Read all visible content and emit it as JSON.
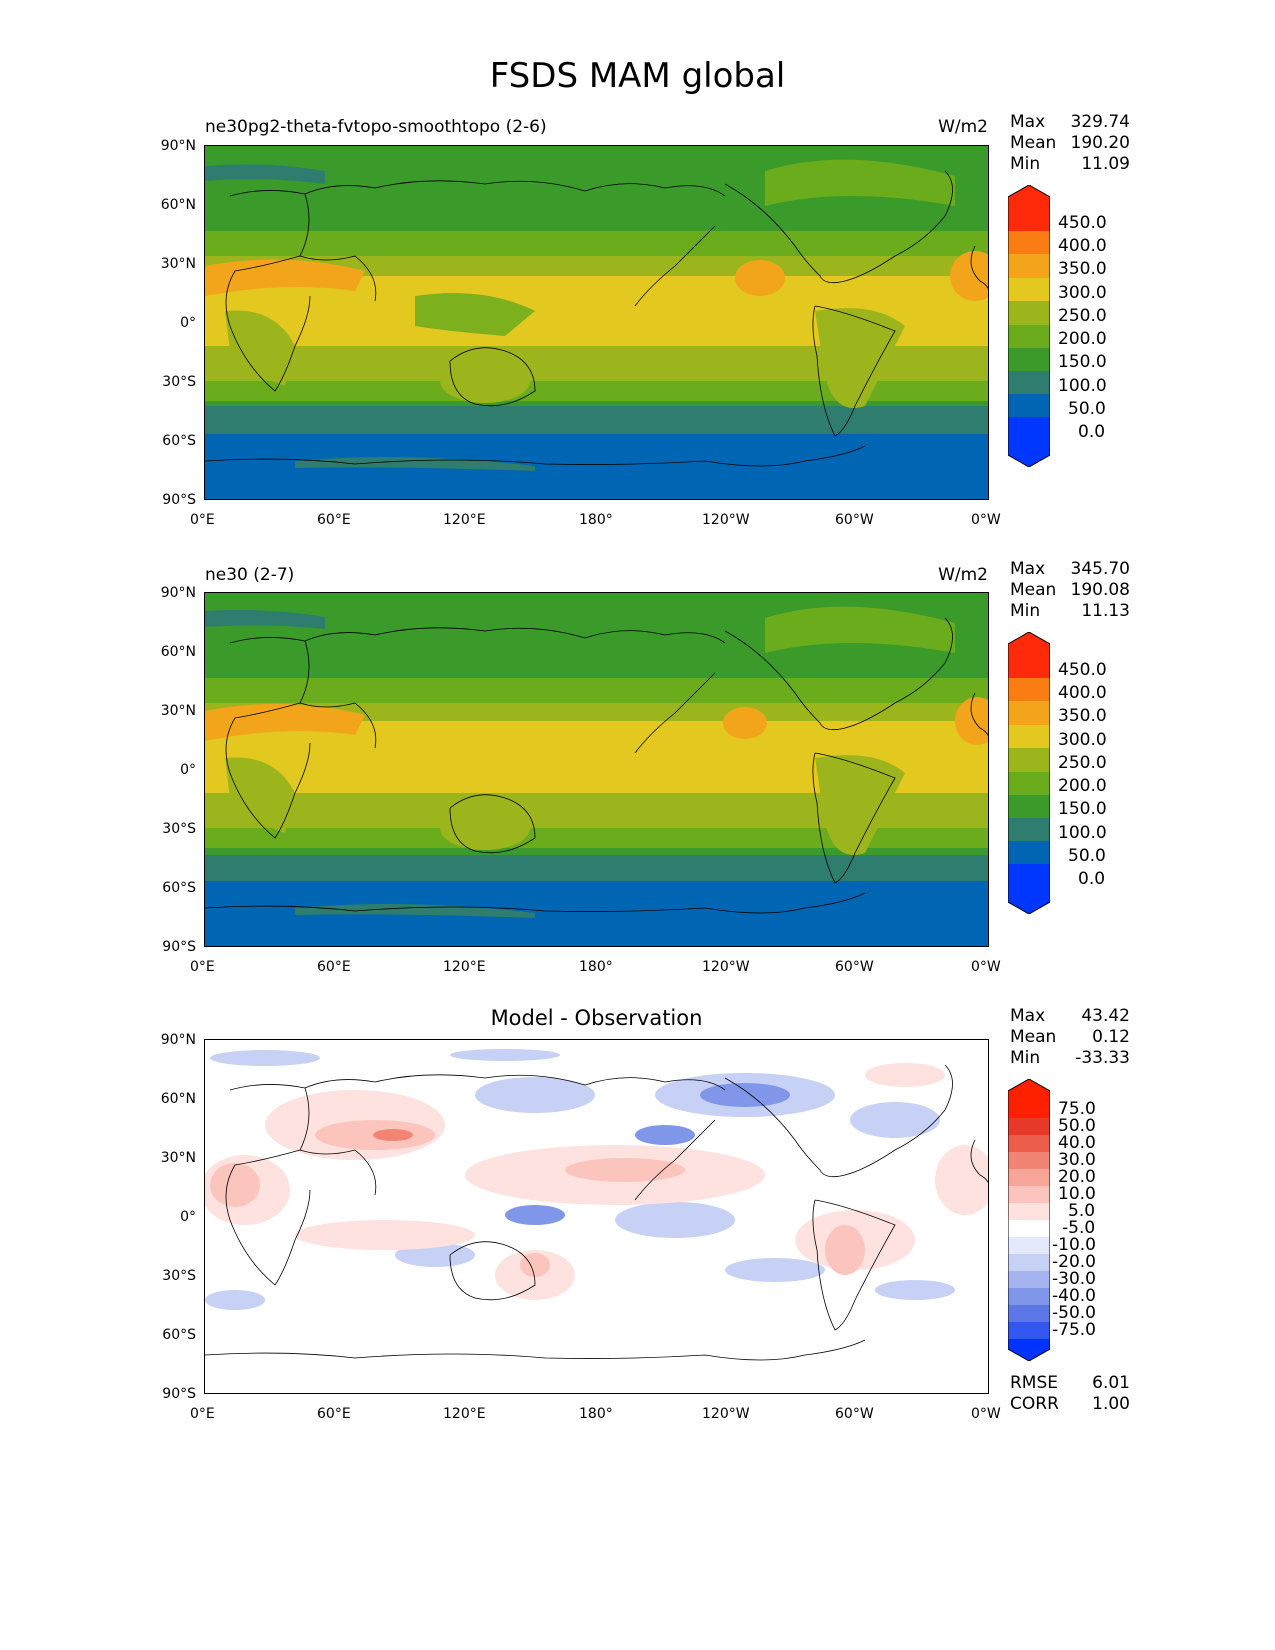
{
  "title": "FSDS MAM global",
  "panels": [
    {
      "id": "p1",
      "label": "ne30pg2-theta-fvtopo-smoothtopo (2-6)",
      "units": "W/m2",
      "stats": [
        {
          "k": "Max",
          "v": "329.74"
        },
        {
          "k": "Mean",
          "v": "190.20"
        },
        {
          "k": "Min",
          "v": "11.09"
        }
      ],
      "colorbar_labels": [
        "450.0",
        "400.0",
        "350.0",
        "300.0",
        "250.0",
        "200.0",
        "150.0",
        "100.0",
        "50.0",
        "0.0"
      ]
    },
    {
      "id": "p2",
      "label": "ne30 (2-7)",
      "units": "W/m2",
      "stats": [
        {
          "k": "Max",
          "v": "345.70"
        },
        {
          "k": "Mean",
          "v": "190.08"
        },
        {
          "k": "Min",
          "v": "11.13"
        }
      ],
      "colorbar_labels": [
        "450.0",
        "400.0",
        "350.0",
        "300.0",
        "250.0",
        "200.0",
        "150.0",
        "100.0",
        "50.0",
        "0.0"
      ]
    },
    {
      "id": "p3",
      "label": "Model - Observation",
      "stats": [
        {
          "k": "Max",
          "v": "43.42"
        },
        {
          "k": "Mean",
          "v": "0.12"
        },
        {
          "k": "Min",
          "v": "-33.33"
        }
      ],
      "colorbar_labels": [
        "75.0",
        "50.0",
        "40.0",
        "30.0",
        "20.0",
        "10.0",
        "5.0",
        "-5.0",
        "-10.0",
        "-20.0",
        "-30.0",
        "-40.0",
        "-50.0",
        "-75.0"
      ],
      "metrics": [
        {
          "k": "RMSE",
          "v": "6.01"
        },
        {
          "k": "CORR",
          "v": "1.00"
        }
      ]
    }
  ],
  "axes": {
    "y_ticks": [
      "90°N",
      "60°N",
      "30°N",
      "0°",
      "30°S",
      "60°S",
      "90°S"
    ],
    "x_ticks": [
      "0°E",
      "60°E",
      "120°E",
      "180°",
      "120°W",
      "60°W",
      "0°W"
    ]
  },
  "colors": {
    "abs_scale": [
      "#0037ff",
      "#0066b3",
      "#2e7d6e",
      "#3a9a2a",
      "#6aac1c",
      "#9cb51d",
      "#e3c820",
      "#f2a51a",
      "#fa7d14",
      "#ff2a0a"
    ],
    "diff_scale": [
      "#0033ff",
      "#3355f0",
      "#5c78e6",
      "#8096e8",
      "#a5b4ee",
      "#c7d0f5",
      "#e4e9fb",
      "#ffffff",
      "#fde2df",
      "#fbc5bd",
      "#f7a499",
      "#f28474",
      "#ec5d4c",
      "#e6392a",
      "#ff2000"
    ],
    "border": "#000000"
  }
}
